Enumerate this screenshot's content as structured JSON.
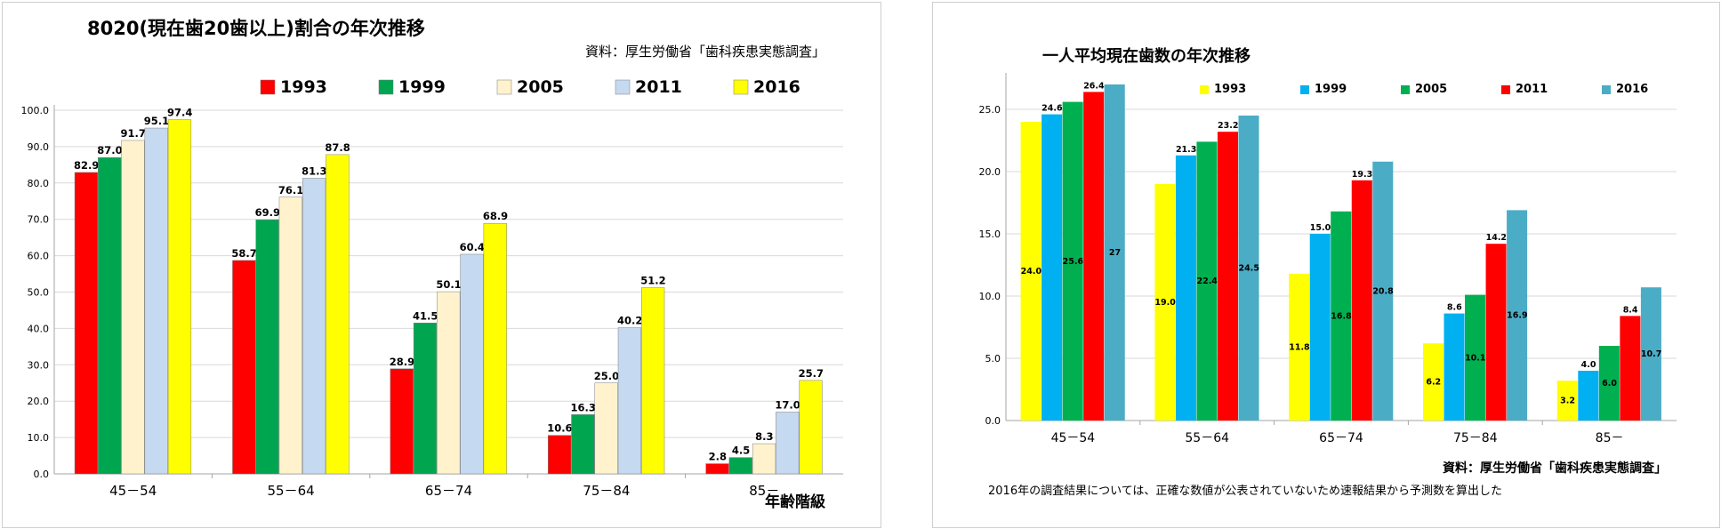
{
  "chart_data": [
    {
      "type": "bar",
      "title": "8020(現在歯20歯以上)割合の年次推移",
      "source": "資料：厚生労働省「歯科疾患実態調査」",
      "xlabel": "年齢階級",
      "ylabel": "",
      "ylim": [
        0,
        100
      ],
      "yticks": [
        "0.0",
        "10.0",
        "20.0",
        "30.0",
        "40.0",
        "50.0",
        "60.0",
        "70.0",
        "80.0",
        "90.0",
        "100.0"
      ],
      "grid": true,
      "legend_position": "top",
      "categories": [
        "45－54",
        "55－64",
        "65－74",
        "75－84",
        "85－"
      ],
      "series": [
        {
          "name": "1993",
          "color": "#ff0000",
          "values": [
            82.9,
            58.7,
            28.9,
            10.6,
            2.8
          ],
          "labels": [
            "82.9",
            "58.7",
            "28.9",
            "10.6",
            "2.8"
          ]
        },
        {
          "name": "1999",
          "color": "#00a550",
          "values": [
            87.0,
            69.9,
            41.5,
            16.3,
            4.5
          ],
          "labels": [
            "87.0",
            "69.9",
            "41.5",
            "16.3",
            "4.5"
          ]
        },
        {
          "name": "2005",
          "color": "#fff2cc",
          "values": [
            91.7,
            76.1,
            50.1,
            25.0,
            8.3
          ],
          "labels": [
            "91.7",
            "76.1",
            "50.1",
            "25.0",
            "8.3"
          ]
        },
        {
          "name": "2011",
          "color": "#c5d9f1",
          "values": [
            95.1,
            81.3,
            60.4,
            40.2,
            17.0
          ],
          "labels": [
            "95.1",
            "81.3",
            "60.4",
            "40.2",
            "17.0"
          ]
        },
        {
          "name": "2016",
          "color": "#ffff00",
          "values": [
            97.4,
            87.8,
            68.9,
            51.2,
            25.7
          ],
          "labels": [
            "97.4",
            "87.8",
            "68.9",
            "51.2",
            "25.7"
          ]
        }
      ]
    },
    {
      "type": "bar",
      "title": "一人平均現在歯数の年次推移",
      "source": "資料：厚生労働省「歯科疾患実態調査」",
      "note": "2016年の調査結果については、正確な数値が公表されていないため速報結果から予測数を算出した",
      "ylim": [
        0,
        27.5
      ],
      "yticks": [
        "0.0",
        "5.0",
        "10.0",
        "15.0",
        "20.0",
        "25.0"
      ],
      "grid": true,
      "legend_position": "top",
      "categories": [
        "45－54",
        "55－64",
        "65－74",
        "75－84",
        "85－"
      ],
      "series": [
        {
          "name": "1993",
          "color": "#ffff00",
          "values": [
            24.0,
            19.0,
            11.8,
            6.2,
            3.2
          ],
          "labels": [
            "24.0",
            "19.0",
            "11.8",
            "6.2",
            "3.2"
          ]
        },
        {
          "name": "1999",
          "color": "#00b0f0",
          "values": [
            24.6,
            21.3,
            15.0,
            8.6,
            4.0
          ],
          "labels": [
            "24.6",
            "21.3",
            "15.0",
            "8.6",
            "4.0"
          ]
        },
        {
          "name": "2005",
          "color": "#00b050",
          "values": [
            25.6,
            22.4,
            16.8,
            10.1,
            6.0
          ],
          "labels": [
            "25.6",
            "22.4",
            "16.8",
            "10.1",
            "6.0"
          ]
        },
        {
          "name": "2011",
          "color": "#ff0000",
          "values": [
            26.4,
            23.2,
            19.3,
            14.2,
            8.4
          ],
          "labels": [
            "26.4",
            "23.2",
            "19.3",
            "14.2",
            "8.4"
          ]
        },
        {
          "name": "2016",
          "color": "#4bacc6",
          "values": [
            27.0,
            24.5,
            20.8,
            16.9,
            10.7
          ],
          "labels": [
            "27",
            "24.5",
            "20.8",
            "16.9",
            "10.7"
          ]
        }
      ]
    }
  ]
}
